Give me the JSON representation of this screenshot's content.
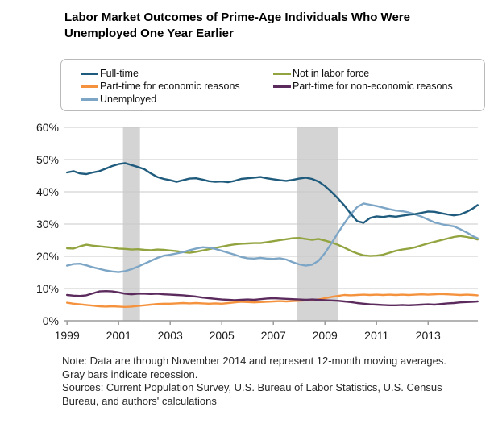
{
  "title": "Labor Market Outcomes of Prime-Age Individuals Who Were Unemployed One Year Earlier",
  "notes": {
    "note": "Note: Data are through November 2014 and represent 12-month moving averages. Gray bars indicate recession.",
    "sources": "Sources: Current Population Survey, U.S. Bureau of Labor Statistics, U.S. Census Bureau, and authors' calculations"
  },
  "chart_data": {
    "type": "line",
    "title": "Labor Market Outcomes of Prime-Age Individuals Who Were Unemployed One Year Earlier",
    "xlabel": "",
    "ylabel": "",
    "xlim": [
      1998.9,
      2014.93
    ],
    "ylim": [
      0,
      60
    ],
    "grid": "horizontal",
    "grid_color": "#c9c9c9",
    "axis_color": "#9c9c9c",
    "band_color": "#d4d4d4",
    "legend_position": "top",
    "recession_bands": [
      [
        2001.17,
        2001.83
      ],
      [
        2007.92,
        2009.5
      ]
    ],
    "y_ticks": [
      {
        "value": 0,
        "label": "0%"
      },
      {
        "value": 10,
        "label": "10%"
      },
      {
        "value": 20,
        "label": "20%"
      },
      {
        "value": 30,
        "label": "30%"
      },
      {
        "value": 40,
        "label": "40%"
      },
      {
        "value": 50,
        "label": "50%"
      },
      {
        "value": 60,
        "label": "60%"
      }
    ],
    "x_ticks": [
      {
        "value": 1999,
        "label": "1999"
      },
      {
        "value": 2001,
        "label": "2001"
      },
      {
        "value": 2003,
        "label": "2003"
      },
      {
        "value": 2005,
        "label": "2005"
      },
      {
        "value": 2007,
        "label": "2007"
      },
      {
        "value": 2009,
        "label": "2009"
      },
      {
        "value": 2011,
        "label": "2011"
      },
      {
        "value": 2013,
        "label": "2013"
      }
    ],
    "x": [
      1999,
      1999.25,
      1999.5,
      1999.75,
      2000,
      2000.25,
      2000.5,
      2000.75,
      2001,
      2001.25,
      2001.5,
      2001.75,
      2002,
      2002.25,
      2002.5,
      2002.75,
      2003,
      2003.25,
      2003.5,
      2003.75,
      2004,
      2004.25,
      2004.5,
      2004.75,
      2005,
      2005.25,
      2005.5,
      2005.75,
      2006,
      2006.25,
      2006.5,
      2006.75,
      2007,
      2007.25,
      2007.5,
      2007.75,
      2008,
      2008.25,
      2008.5,
      2008.75,
      2009,
      2009.25,
      2009.5,
      2009.75,
      2010,
      2010.25,
      2010.5,
      2010.75,
      2011,
      2011.25,
      2011.5,
      2011.75,
      2012,
      2012.25,
      2012.5,
      2012.75,
      2013,
      2013.25,
      2013.5,
      2013.75,
      2014,
      2014.25,
      2014.5,
      2014.75,
      2014.92
    ],
    "draw_order": [
      1,
      4,
      3,
      2,
      0
    ],
    "series": [
      {
        "name": "Full-time",
        "color": "#1f5b7d",
        "values": [
          46.0,
          46.4,
          45.7,
          45.5,
          46.0,
          46.4,
          47.2,
          48.0,
          48.6,
          48.9,
          48.3,
          47.7,
          47.0,
          45.7,
          44.6,
          44.0,
          43.6,
          43.1,
          43.6,
          44.1,
          44.2,
          43.8,
          43.3,
          43.1,
          43.2,
          43.0,
          43.4,
          44.0,
          44.2,
          44.4,
          44.6,
          44.2,
          43.9,
          43.6,
          43.4,
          43.7,
          44.1,
          44.4,
          44.0,
          43.2,
          41.8,
          40.0,
          38.0,
          35.8,
          33.2,
          30.9,
          30.4,
          31.9,
          32.4,
          32.2,
          32.5,
          32.3,
          32.6,
          32.9,
          33.1,
          33.5,
          33.9,
          33.8,
          33.4,
          33.0,
          32.7,
          33.0,
          33.8,
          34.9,
          35.9
        ]
      },
      {
        "name": "Part-time for economic reasons",
        "color": "#f5923e",
        "values": [
          5.6,
          5.3,
          5.1,
          4.9,
          4.7,
          4.5,
          4.4,
          4.5,
          4.4,
          4.3,
          4.4,
          4.6,
          4.8,
          5.0,
          5.2,
          5.3,
          5.3,
          5.4,
          5.5,
          5.4,
          5.5,
          5.4,
          5.3,
          5.4,
          5.3,
          5.5,
          5.7,
          5.9,
          5.8,
          5.7,
          5.8,
          5.9,
          6.0,
          6.1,
          6.0,
          6.1,
          6.2,
          6.3,
          6.4,
          6.6,
          7.0,
          7.4,
          7.7,
          8.0,
          7.9,
          8.0,
          8.1,
          8.0,
          8.1,
          8.0,
          8.1,
          8.0,
          8.1,
          8.0,
          8.1,
          8.2,
          8.1,
          8.2,
          8.3,
          8.2,
          8.1,
          8.0,
          8.1,
          8.0,
          7.9
        ]
      },
      {
        "name": "Unemployed",
        "color": "#7da6c6",
        "values": [
          17.1,
          17.6,
          17.7,
          17.2,
          16.6,
          16.1,
          15.6,
          15.3,
          15.1,
          15.4,
          16.0,
          16.8,
          17.7,
          18.6,
          19.5,
          20.2,
          20.5,
          20.9,
          21.3,
          21.9,
          22.4,
          22.8,
          22.7,
          22.3,
          21.7,
          21.1,
          20.5,
          19.8,
          19.4,
          19.3,
          19.5,
          19.3,
          19.2,
          19.4,
          19.0,
          18.2,
          17.5,
          17.1,
          17.4,
          18.6,
          21.0,
          24.0,
          27.2,
          30.2,
          33.0,
          35.3,
          36.4,
          36.0,
          35.6,
          35.1,
          34.6,
          34.2,
          34.0,
          33.6,
          33.0,
          32.3,
          31.4,
          30.5,
          30.0,
          29.6,
          29.3,
          28.4,
          27.4,
          26.2,
          25.6
        ]
      },
      {
        "name": "Not in labor force",
        "color": "#92a43f",
        "values": [
          22.5,
          22.4,
          23.1,
          23.6,
          23.3,
          23.1,
          22.9,
          22.7,
          22.4,
          22.3,
          22.1,
          22.2,
          22.0,
          21.9,
          22.1,
          22.0,
          21.8,
          21.6,
          21.3,
          21.1,
          21.4,
          21.8,
          22.2,
          22.6,
          23.0,
          23.4,
          23.7,
          23.9,
          24.0,
          24.1,
          24.1,
          24.4,
          24.7,
          25.0,
          25.3,
          25.6,
          25.7,
          25.4,
          25.1,
          25.4,
          24.9,
          24.3,
          23.6,
          22.7,
          21.7,
          20.9,
          20.3,
          20.1,
          20.2,
          20.5,
          21.1,
          21.7,
          22.1,
          22.4,
          22.8,
          23.4,
          24.0,
          24.5,
          25.0,
          25.5,
          26.0,
          26.3,
          26.0,
          25.6,
          25.2
        ]
      },
      {
        "name": "Part-time for non-economic reasons",
        "color": "#5c2b5e",
        "values": [
          8.0,
          7.8,
          7.7,
          7.9,
          8.5,
          9.1,
          9.2,
          9.1,
          8.8,
          8.4,
          8.2,
          8.4,
          8.4,
          8.3,
          8.4,
          8.2,
          8.1,
          8.0,
          7.9,
          7.7,
          7.5,
          7.2,
          7.0,
          6.8,
          6.6,
          6.5,
          6.4,
          6.5,
          6.6,
          6.5,
          6.7,
          6.9,
          7.0,
          6.9,
          6.8,
          6.7,
          6.6,
          6.5,
          6.6,
          6.5,
          6.4,
          6.3,
          6.2,
          6.0,
          5.8,
          5.5,
          5.3,
          5.1,
          5.0,
          4.9,
          4.8,
          4.8,
          4.9,
          4.8,
          4.9,
          5.0,
          5.1,
          5.0,
          5.2,
          5.4,
          5.5,
          5.7,
          5.8,
          5.9,
          6.0
        ]
      }
    ]
  }
}
